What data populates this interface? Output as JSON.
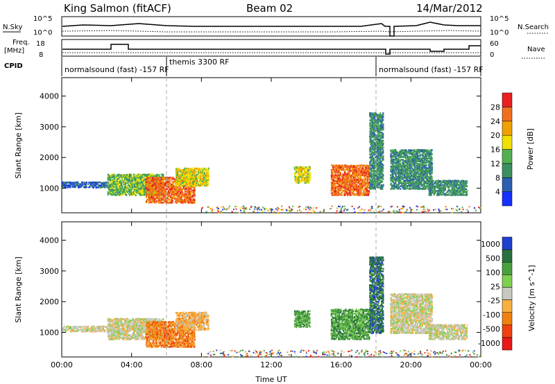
{
  "header": {
    "station": "King Salmon (fitACF)",
    "beam": "Beam 02",
    "date": "14/Mar/2012"
  },
  "summary_panels": {
    "nsky_label": "N.Sky",
    "nsky_ticks": [
      "10^5",
      "10^0"
    ],
    "nsearch_label": "N.Search",
    "nsearch_ticks": [
      "10^5",
      "10^0"
    ],
    "freq_label_line1": "Freq.",
    "freq_label_line2": "[MHz]",
    "freq_ticks": [
      "18",
      "8"
    ],
    "nave_label": "Nave",
    "nave_ticks": [
      "60",
      "0"
    ],
    "cpid_label": "CPID",
    "cpid_segments": [
      {
        "text": "normalsound (fast) -157 RF",
        "start_hour": 0.0
      },
      {
        "text": "themis 3300 RF",
        "start_hour": 6.0
      },
      {
        "text": "normalsound (fast) -157 RF",
        "start_hour": 18.0
      }
    ]
  },
  "chart_data": [
    {
      "type": "heatmap",
      "title": "Power",
      "xlabel": "Time UT",
      "ylabel": "Slant Range [km]",
      "xlim": [
        0,
        24
      ],
      "ylim": [
        200,
        4600
      ],
      "y_ticks": [
        1000,
        2000,
        3000,
        4000
      ],
      "x_ticks": [
        "00:00",
        "04:00",
        "08:00",
        "12:00",
        "16:00",
        "20:00",
        "00:00"
      ],
      "colorbar_label": "Power [dB]",
      "colorbar_ticks": [
        "4",
        "8",
        "12",
        "16",
        "20",
        "24",
        "28"
      ],
      "colorbar_colors": [
        "#1530ff",
        "#2d5fb0",
        "#3a9060",
        "#52b050",
        "#f0e000",
        "#f0a000",
        "#f07020",
        "#e82020"
      ],
      "scatter_regions": [
        {
          "t_start": 0.0,
          "t_end": 2.6,
          "r_min": 1050,
          "r_max": 1250,
          "level": 1
        },
        {
          "t_start": 2.6,
          "t_end": 5.8,
          "r_min": 800,
          "r_max": 1500,
          "level": 3
        },
        {
          "t_start": 4.8,
          "t_end": 7.6,
          "r_min": 550,
          "r_max": 1400,
          "level": 6
        },
        {
          "t_start": 6.5,
          "t_end": 8.4,
          "r_min": 1100,
          "r_max": 1700,
          "level": 4
        },
        {
          "t_start": 13.3,
          "t_end": 14.2,
          "r_min": 1200,
          "r_max": 1750,
          "level": 4
        },
        {
          "t_start": 15.4,
          "t_end": 17.6,
          "r_min": 800,
          "r_max": 1800,
          "level": 6
        },
        {
          "t_start": 17.6,
          "t_end": 18.4,
          "r_min": 1000,
          "r_max": 3500,
          "level": 2
        },
        {
          "t_start": 18.8,
          "t_end": 21.2,
          "r_min": 1000,
          "r_max": 2300,
          "level": 2
        },
        {
          "t_start": 21.0,
          "t_end": 23.2,
          "r_min": 800,
          "r_max": 1300,
          "level": 2
        }
      ]
    },
    {
      "type": "heatmap",
      "xlabel": "Time UT",
      "ylabel": "Slant Range [km]",
      "xlim": [
        0,
        24
      ],
      "ylim": [
        200,
        4600
      ],
      "y_ticks": [
        1000,
        2000,
        3000,
        4000
      ],
      "x_ticks": [
        "00:00",
        "04:00",
        "08:00",
        "12:00",
        "16:00",
        "20:00",
        "00:00"
      ],
      "colorbar_label": "Velocity [m s^-1]",
      "colorbar_ticks": [
        "1000",
        "500",
        "100",
        "25",
        "-25",
        "-100",
        "-500",
        "-1000"
      ],
      "colorbar_colors": [
        "#2040d0",
        "#2a7040",
        "#4aa040",
        "#80d050",
        "#c8c8c0",
        "#f8b040",
        "#f08010",
        "#f04010",
        "#e81818"
      ],
      "scatter_regions": [
        {
          "t_start": 0.0,
          "t_end": 2.6,
          "r_min": 1050,
          "r_max": 1250,
          "level": 4
        },
        {
          "t_start": 2.6,
          "t_end": 5.8,
          "r_min": 800,
          "r_max": 1500,
          "level": 4
        },
        {
          "t_start": 4.8,
          "t_end": 7.6,
          "r_min": 550,
          "r_max": 1400,
          "level": 6
        },
        {
          "t_start": 6.5,
          "t_end": 8.4,
          "r_min": 1100,
          "r_max": 1700,
          "level": 5
        },
        {
          "t_start": 13.3,
          "t_end": 14.2,
          "r_min": 1200,
          "r_max": 1750,
          "level": 2
        },
        {
          "t_start": 15.4,
          "t_end": 17.6,
          "r_min": 800,
          "r_max": 1800,
          "level": 2
        },
        {
          "t_start": 17.6,
          "t_end": 18.4,
          "r_min": 1000,
          "r_max": 3500,
          "level": 1
        },
        {
          "t_start": 18.8,
          "t_end": 21.2,
          "r_min": 1000,
          "r_max": 2300,
          "level": 4
        },
        {
          "t_start": 21.0,
          "t_end": 23.2,
          "r_min": 800,
          "r_max": 1300,
          "level": 4
        }
      ]
    }
  ]
}
